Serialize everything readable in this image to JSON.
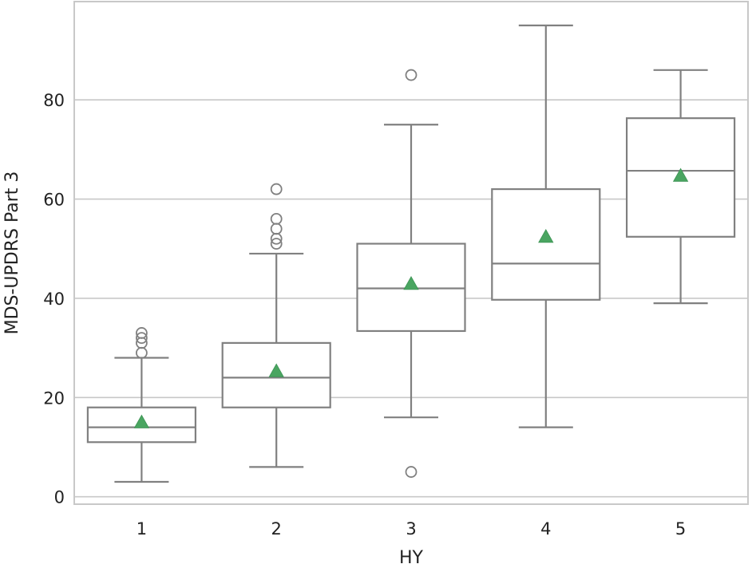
{
  "chart_data": {
    "type": "box",
    "title": "",
    "xlabel": "HY",
    "ylabel": "MDS-UPDRS Part 3",
    "categories": [
      "1",
      "2",
      "3",
      "4",
      "5"
    ],
    "ylim": [
      -1.5,
      99.8
    ],
    "yticks": [
      0,
      20,
      40,
      60,
      80
    ],
    "ytick_labels": [
      "0",
      "20",
      "40",
      "60",
      "80"
    ],
    "grid": "horizontal",
    "colors": {
      "box": "#808080",
      "mean": "#4aa561",
      "grid": "#c8c8c8",
      "frame": "#c8c8c8"
    },
    "boxes": [
      {
        "category": "1",
        "whisker_low": 3,
        "q1": 11,
        "median": 14,
        "q3": 18,
        "whisker_high": 28,
        "mean": 15,
        "outliers": [
          29,
          31,
          32,
          33
        ]
      },
      {
        "category": "2",
        "whisker_low": 6,
        "q1": 18,
        "median": 24,
        "q3": 31,
        "whisker_high": 49,
        "mean": 25.3,
        "outliers": [
          51,
          52,
          54,
          56,
          62
        ]
      },
      {
        "category": "3",
        "whisker_low": 16,
        "q1": 33.4,
        "median": 42,
        "q3": 51,
        "whisker_high": 75,
        "mean": 42.9,
        "outliers": [
          5,
          85
        ]
      },
      {
        "category": "4",
        "whisker_low": 14,
        "q1": 39.7,
        "median": 47,
        "q3": 62,
        "whisker_high": 95,
        "mean": 52.4,
        "outliers": []
      },
      {
        "category": "5",
        "whisker_low": 39,
        "q1": 52.4,
        "median": 65.7,
        "q3": 76.3,
        "whisker_high": 86,
        "mean": 64.7,
        "outliers": []
      }
    ]
  }
}
